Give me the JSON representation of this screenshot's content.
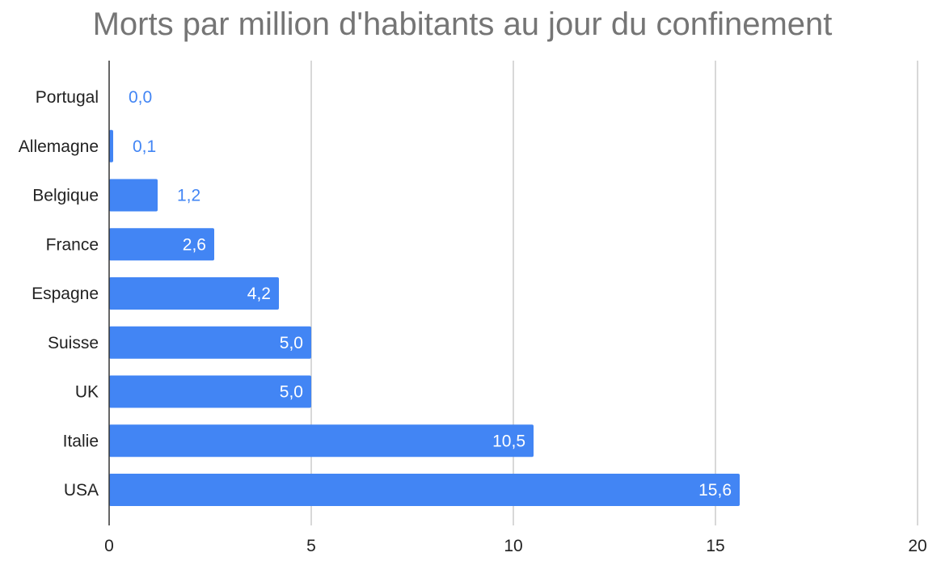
{
  "chart_data": {
    "type": "bar",
    "orientation": "horizontal",
    "title": "Morts par million d'habitants au jour du confinement",
    "xlabel": "",
    "ylabel": "",
    "xlim": [
      0,
      20
    ],
    "x_ticks": [
      "0",
      "5",
      "10",
      "15",
      "20"
    ],
    "grid": true,
    "legend": "none",
    "categories": [
      "Portugal",
      "Allemagne",
      "Belgique",
      "France",
      "Espagne",
      "Suisse",
      "UK",
      "Italie",
      "USA"
    ],
    "values": [
      0.0,
      0.1,
      1.2,
      2.6,
      4.2,
      5.0,
      5.0,
      10.5,
      15.6
    ],
    "data_labels": [
      "0,0",
      "0,1",
      "1,2",
      "2,6",
      "4,2",
      "5,0",
      "5,0",
      "10,5",
      "15,6"
    ],
    "colors": {
      "bar": "#4285f4",
      "label_inside": "#ffffff",
      "label_outside": "#4285f4",
      "grid": "#cccccc",
      "axis": "#333333",
      "text": "#222222",
      "title": "#757575"
    }
  }
}
